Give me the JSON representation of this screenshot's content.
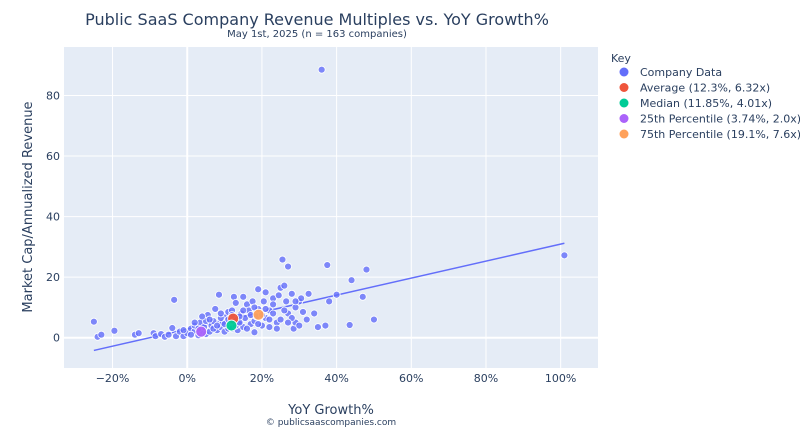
{
  "chart_data": {
    "type": "scatter",
    "title": "Public SaaS Company Revenue Multiples vs. YoY Growth%",
    "subtitle": "May 1st, 2025 (n = 163 companies)",
    "xlabel": "YoY Growth%",
    "ylabel": "Market Cap/Annualized Revenue",
    "footer": "© publicsaascompanies.com",
    "xlim": [
      -33,
      110
    ],
    "ylim": [
      -10,
      96
    ],
    "x_ticks": [
      -20,
      0,
      20,
      40,
      60,
      80,
      100
    ],
    "x_tick_labels": [
      "−20%",
      "0%",
      "20%",
      "40%",
      "60%",
      "80%",
      "100%"
    ],
    "y_ticks": [
      0,
      20,
      40,
      60,
      80
    ],
    "y_tick_labels": [
      "0",
      "20",
      "40",
      "60",
      "80"
    ],
    "grid": true,
    "legend_title": "Key",
    "legend_position": "right",
    "colors": {
      "plot_bg": "#e5ecf6",
      "company": "#636efa",
      "average": "#ef553b",
      "median": "#00cc96",
      "p25": "#ab63fa",
      "p75": "#ffa15a",
      "trend": "#636efa"
    },
    "trendline": {
      "x": [
        -25,
        101
      ],
      "y": [
        -4.2,
        31.2
      ]
    },
    "series": [
      {
        "name": "Company Data",
        "color_key": "company",
        "points": [
          [
            -25,
            5.3
          ],
          [
            -24,
            0.3
          ],
          [
            -23,
            1
          ],
          [
            -19.5,
            2.3
          ],
          [
            -14,
            1
          ],
          [
            -13,
            1.5
          ],
          [
            -9,
            1.5
          ],
          [
            -8.5,
            0.5
          ],
          [
            -7,
            1.2
          ],
          [
            -6,
            0.3
          ],
          [
            -5,
            1
          ],
          [
            -4,
            3.2
          ],
          [
            -3.5,
            12.5
          ],
          [
            -3,
            0.5
          ],
          [
            -2,
            2
          ],
          [
            -1,
            0.5
          ],
          [
            0,
            1.5
          ],
          [
            1,
            3
          ],
          [
            2,
            2.2
          ],
          [
            2,
            4
          ],
          [
            3,
            0.8
          ],
          [
            3.5,
            5
          ],
          [
            4,
            2.2
          ],
          [
            4.5,
            3.5
          ],
          [
            5,
            1.2
          ],
          [
            5.5,
            7.5
          ],
          [
            6,
            2
          ],
          [
            6.5,
            4
          ],
          [
            7,
            5.5
          ],
          [
            7.5,
            9.5
          ],
          [
            8,
            2.5
          ],
          [
            8.5,
            14.2
          ],
          [
            9,
            3.5
          ],
          [
            9.5,
            5
          ],
          [
            10,
            2
          ],
          [
            10.5,
            7
          ],
          [
            11,
            3
          ],
          [
            11,
            8.5
          ],
          [
            11.5,
            5.5
          ],
          [
            12,
            9
          ],
          [
            12,
            3
          ],
          [
            12.5,
            13.5
          ],
          [
            13,
            11.5
          ],
          [
            13,
            6
          ],
          [
            13.5,
            2.5
          ],
          [
            14,
            4.5
          ],
          [
            14.5,
            8
          ],
          [
            15,
            13.5
          ],
          [
            15,
            3.5
          ],
          [
            15.5,
            6.5
          ],
          [
            16,
            11
          ],
          [
            16.5,
            9
          ],
          [
            17,
            4.5
          ],
          [
            17.5,
            12
          ],
          [
            18,
            5.5
          ],
          [
            18,
            1.8
          ],
          [
            18.5,
            7
          ],
          [
            19,
            16
          ],
          [
            19,
            9.5
          ],
          [
            20,
            4
          ],
          [
            20.5,
            12
          ],
          [
            21,
            15
          ],
          [
            21,
            6.5
          ],
          [
            22,
            9
          ],
          [
            22,
            3.5
          ],
          [
            23,
            13
          ],
          [
            23,
            8
          ],
          [
            24,
            5
          ],
          [
            24.5,
            14
          ],
          [
            25,
            16.5
          ],
          [
            25,
            6
          ],
          [
            25.5,
            25.8
          ],
          [
            26,
            17.2
          ],
          [
            26.5,
            12
          ],
          [
            27,
            23.5
          ],
          [
            27,
            8
          ],
          [
            28,
            14.5
          ],
          [
            28.5,
            3
          ],
          [
            29,
            10
          ],
          [
            29,
            5
          ],
          [
            30,
            12
          ],
          [
            30.5,
            13
          ],
          [
            31,
            8.5
          ],
          [
            32,
            6
          ],
          [
            32.5,
            14.5
          ],
          [
            34,
            8
          ],
          [
            35,
            3.5
          ],
          [
            36,
            88.5
          ],
          [
            37,
            4
          ],
          [
            37.5,
            24
          ],
          [
            38,
            12
          ],
          [
            40,
            14.2
          ],
          [
            43.5,
            4.2
          ],
          [
            44,
            19
          ],
          [
            47,
            13.5
          ],
          [
            48,
            22.5
          ],
          [
            50,
            6
          ],
          [
            101,
            27.2
          ],
          [
            5,
            5.5
          ],
          [
            7,
            3
          ],
          [
            9,
            6.5
          ],
          [
            10,
            4.5
          ],
          [
            13,
            4
          ],
          [
            14,
            5
          ],
          [
            16,
            3
          ],
          [
            17,
            7.5
          ],
          [
            19,
            4.5
          ],
          [
            20,
            7.5
          ],
          [
            22,
            6
          ],
          [
            24,
            3
          ],
          [
            26,
            9
          ],
          [
            28,
            6.5
          ],
          [
            30,
            4
          ],
          [
            3,
            3
          ],
          [
            1,
            1
          ],
          [
            -1,
            2.5
          ],
          [
            6,
            6
          ],
          [
            8,
            4
          ],
          [
            11,
            6
          ],
          [
            12,
            7.5
          ],
          [
            14,
            7
          ],
          [
            15,
            9
          ],
          [
            18,
            10
          ],
          [
            21,
            9.5
          ],
          [
            23,
            11
          ],
          [
            2,
            5
          ],
          [
            4,
            7
          ],
          [
            9,
            8
          ],
          [
            27,
            5
          ],
          [
            29,
            12
          ]
        ]
      },
      {
        "name": "Average (12.3%, 6.32x)",
        "color_key": "average",
        "points": [
          [
            12.3,
            6.32
          ]
        ]
      },
      {
        "name": "Median (11.85%, 4.01x)",
        "color_key": "median",
        "points": [
          [
            11.85,
            4.01
          ]
        ]
      },
      {
        "name": "25th Percentile (3.74%, 2.0x)",
        "color_key": "p25",
        "points": [
          [
            3.74,
            2.0
          ]
        ]
      },
      {
        "name": "75th Percentile (19.1%, 7.6x)",
        "color_key": "p75",
        "points": [
          [
            19.1,
            7.6
          ]
        ]
      }
    ]
  }
}
